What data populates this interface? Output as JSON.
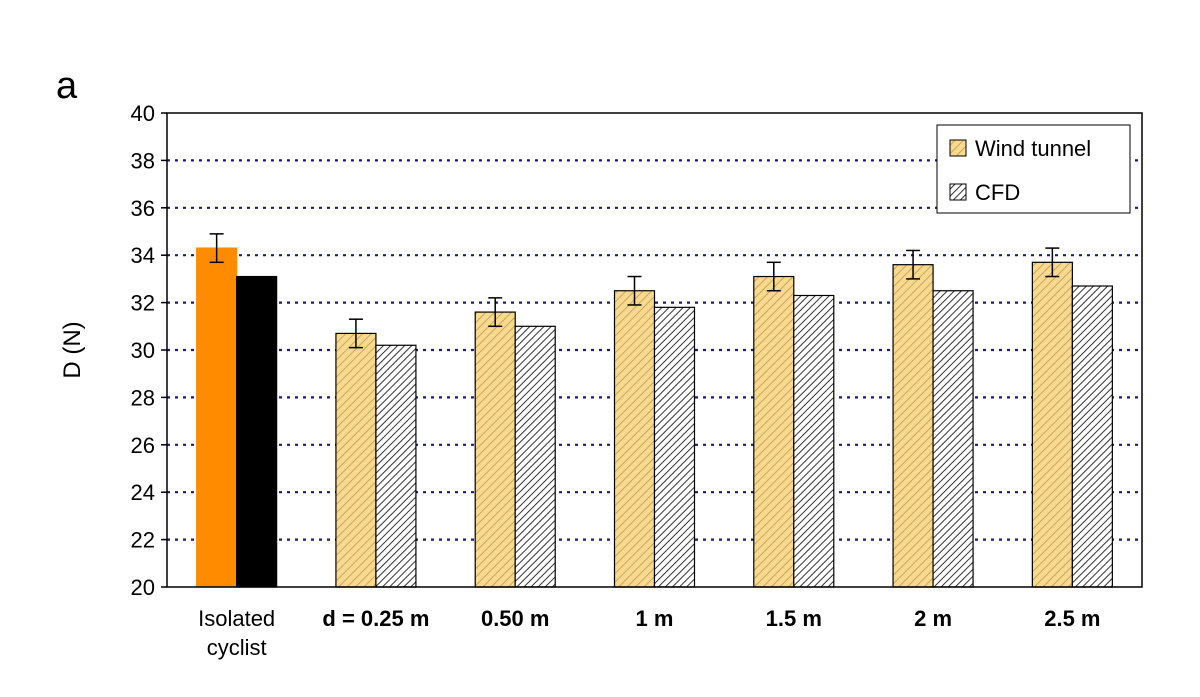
{
  "panel_label": "a",
  "colors": {
    "wind_tunnel_fill": "#f9d98e",
    "wind_tunnel_stroke": "#7a6a3a",
    "cfd_fill": "#c8c8c8",
    "isolated_wind_tunnel": "#ff8c00",
    "isolated_cfd": "#000000",
    "grid": "#1a1a7a"
  },
  "chart_data": {
    "type": "bar",
    "ylabel": "D (N)",
    "xlabel": "",
    "ylim": [
      20,
      40
    ],
    "yticks": [
      20,
      22,
      24,
      26,
      28,
      30,
      32,
      34,
      36,
      38,
      40
    ],
    "grid": "horizontal dotted",
    "legend_position": "top-right",
    "categories": [
      {
        "lines": [
          "Isolated",
          "cyclist"
        ],
        "bold": false
      },
      {
        "lines": [
          "d = 0.25 m"
        ],
        "bold": true
      },
      {
        "lines": [
          "0.50 m"
        ],
        "bold": true
      },
      {
        "lines": [
          "1 m"
        ],
        "bold": true
      },
      {
        "lines": [
          "1.5 m"
        ],
        "bold": true
      },
      {
        "lines": [
          "2 m"
        ],
        "bold": true
      },
      {
        "lines": [
          "2.5 m"
        ],
        "bold": true
      }
    ],
    "series": [
      {
        "name": "Wind tunnel",
        "values": [
          34.3,
          30.7,
          31.6,
          32.5,
          33.1,
          33.6,
          33.7
        ],
        "error": [
          0.6,
          0.6,
          0.6,
          0.6,
          0.6,
          0.6,
          0.6
        ]
      },
      {
        "name": "CFD",
        "values": [
          33.1,
          30.2,
          31.0,
          31.8,
          32.3,
          32.5,
          32.7
        ]
      }
    ]
  }
}
